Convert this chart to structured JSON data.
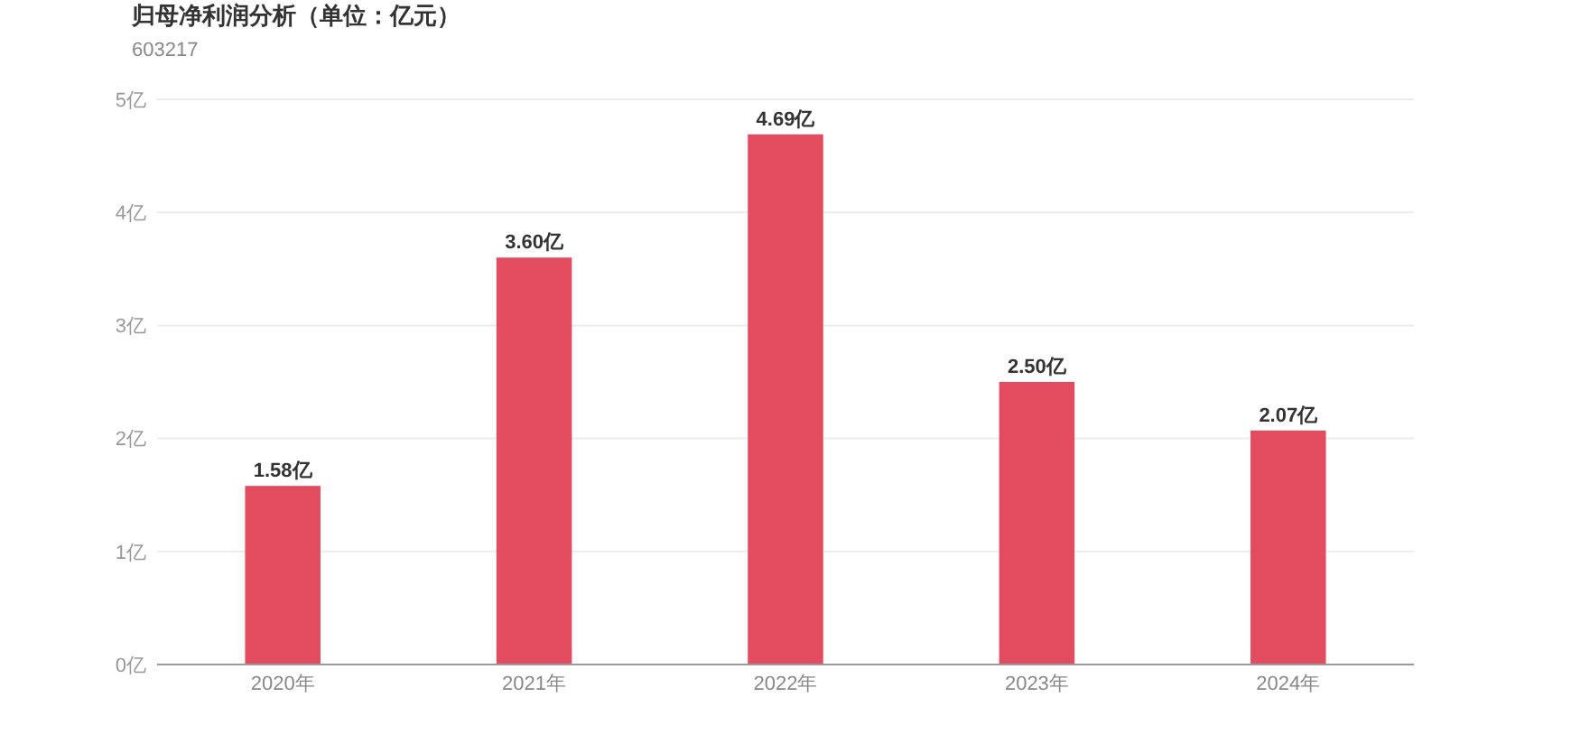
{
  "chart_data": {
    "type": "bar",
    "title": "归母净利润分析（单位：亿元）",
    "subtitle": "603217",
    "categories": [
      "2020年",
      "2021年",
      "2022年",
      "2023年",
      "2024年"
    ],
    "values": [
      1.58,
      3.6,
      4.69,
      2.5,
      2.07
    ],
    "value_labels": [
      "1.58亿",
      "3.60亿",
      "4.69亿",
      "2.50亿",
      "2.07亿"
    ],
    "color": "#e34b5f",
    "ylim": [
      0,
      5
    ],
    "yticks": [
      {
        "value": 0,
        "label": "0亿"
      },
      {
        "value": 1,
        "label": "1亿"
      },
      {
        "value": 2,
        "label": "2亿"
      },
      {
        "value": 3,
        "label": "3亿"
      },
      {
        "value": 4,
        "label": "4亿"
      },
      {
        "value": 5,
        "label": "5亿"
      }
    ],
    "grid": "y"
  }
}
